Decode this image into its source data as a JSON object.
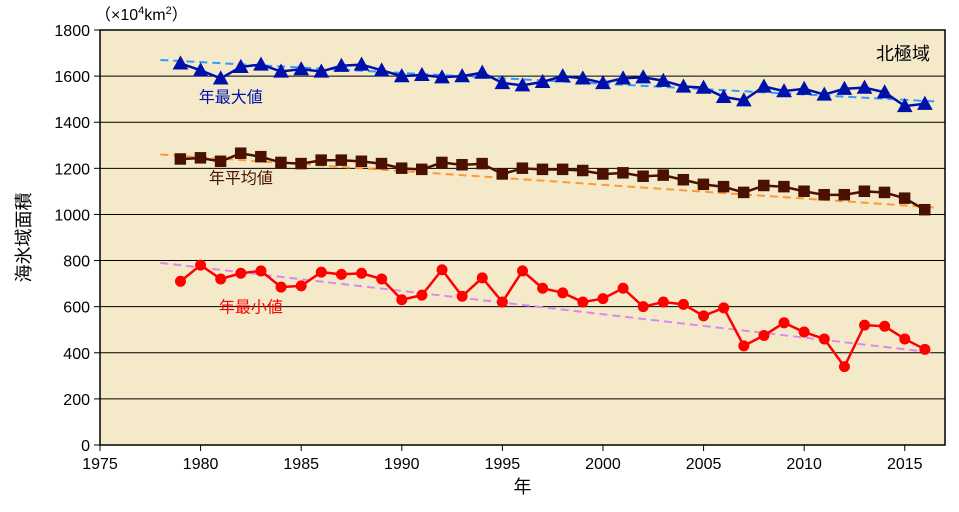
{
  "chart": {
    "type": "line",
    "region_label": "北極域",
    "y_axis_label": "海氷域面積",
    "y_unit_label_prefix": "（×10",
    "y_unit_label_exp": "4",
    "y_unit_label_mid": "km",
    "y_unit_label_exp2": "2",
    "y_unit_label_suffix": "）",
    "x_axis_label": "年",
    "background_color": "#f4eaca",
    "grid_color": "#000000",
    "xlim": [
      1975,
      2017
    ],
    "ylim": [
      0,
      1800
    ],
    "xtick_step": 5,
    "ytick_step": 200,
    "xticks": [
      1975,
      1980,
      1985,
      1990,
      1995,
      2000,
      2005,
      2010,
      2015
    ],
    "yticks": [
      0,
      200,
      400,
      600,
      800,
      1000,
      1200,
      1400,
      1600,
      1800
    ],
    "series": [
      {
        "name": "年最大値",
        "label_x": 1981.5,
        "label_y": 1485,
        "color": "#0011aa",
        "marker": "triangle",
        "marker_size": 7,
        "line_width": 2.5,
        "trend_color": "#3399ff",
        "trend_dash": "8,5",
        "trend_width": 2,
        "trend": {
          "x1": 1978,
          "y1": 1670,
          "x2": 2016.5,
          "y2": 1490
        },
        "years": [
          1979,
          1980,
          1981,
          1982,
          1983,
          1984,
          1985,
          1986,
          1987,
          1988,
          1989,
          1990,
          1991,
          1992,
          1993,
          1994,
          1995,
          1996,
          1997,
          1998,
          1999,
          2000,
          2001,
          2002,
          2003,
          2004,
          2005,
          2006,
          2007,
          2008,
          2009,
          2010,
          2011,
          2012,
          2013,
          2014,
          2015,
          2016
        ],
        "values": [
          1655,
          1625,
          1590,
          1640,
          1650,
          1620,
          1630,
          1620,
          1645,
          1650,
          1625,
          1600,
          1605,
          1595,
          1600,
          1615,
          1570,
          1560,
          1575,
          1600,
          1590,
          1570,
          1590,
          1595,
          1580,
          1555,
          1550,
          1510,
          1495,
          1555,
          1535,
          1545,
          1520,
          1545,
          1550,
          1530,
          1470,
          1480
        ]
      },
      {
        "name": "年平均値",
        "label_x": 1982,
        "label_y": 1135,
        "color": "#4a1100",
        "marker": "square",
        "marker_size": 7,
        "line_width": 2.5,
        "trend_color": "#ff9933",
        "trend_dash": "8,5",
        "trend_width": 2,
        "trend": {
          "x1": 1978,
          "y1": 1260,
          "x2": 2016.5,
          "y2": 1030
        },
        "years": [
          1979,
          1980,
          1981,
          1982,
          1983,
          1984,
          1985,
          1986,
          1987,
          1988,
          1989,
          1990,
          1991,
          1992,
          1993,
          1994,
          1995,
          1996,
          1997,
          1998,
          1999,
          2000,
          2001,
          2002,
          2003,
          2004,
          2005,
          2006,
          2007,
          2008,
          2009,
          2010,
          2011,
          2012,
          2013,
          2014,
          2015,
          2016
        ],
        "values": [
          1240,
          1245,
          1230,
          1265,
          1250,
          1225,
          1220,
          1235,
          1235,
          1230,
          1220,
          1200,
          1195,
          1225,
          1215,
          1220,
          1175,
          1200,
          1195,
          1195,
          1190,
          1175,
          1180,
          1165,
          1170,
          1150,
          1130,
          1120,
          1095,
          1125,
          1120,
          1100,
          1085,
          1085,
          1100,
          1095,
          1070,
          1020
        ]
      },
      {
        "name": "年最小値",
        "label_x": 1982.5,
        "label_y": 575,
        "color": "#ff0000",
        "marker": "circle",
        "marker_size": 5,
        "line_width": 2.5,
        "trend_color": "#dd88ee",
        "trend_dash": "8,5",
        "trend_width": 2,
        "trend": {
          "x1": 1978,
          "y1": 790,
          "x2": 2016.5,
          "y2": 400
        },
        "years": [
          1979,
          1980,
          1981,
          1982,
          1983,
          1984,
          1985,
          1986,
          1987,
          1988,
          1989,
          1990,
          1991,
          1992,
          1993,
          1994,
          1995,
          1996,
          1997,
          1998,
          1999,
          2000,
          2001,
          2002,
          2003,
          2004,
          2005,
          2006,
          2007,
          2008,
          2009,
          2010,
          2011,
          2012,
          2013,
          2014,
          2015,
          2016
        ],
        "values": [
          710,
          780,
          720,
          745,
          755,
          685,
          690,
          750,
          740,
          745,
          720,
          630,
          650,
          760,
          645,
          725,
          620,
          755,
          680,
          660,
          620,
          635,
          680,
          600,
          620,
          610,
          560,
          595,
          430,
          475,
          530,
          490,
          460,
          340,
          520,
          515,
          460,
          415
        ]
      }
    ]
  }
}
